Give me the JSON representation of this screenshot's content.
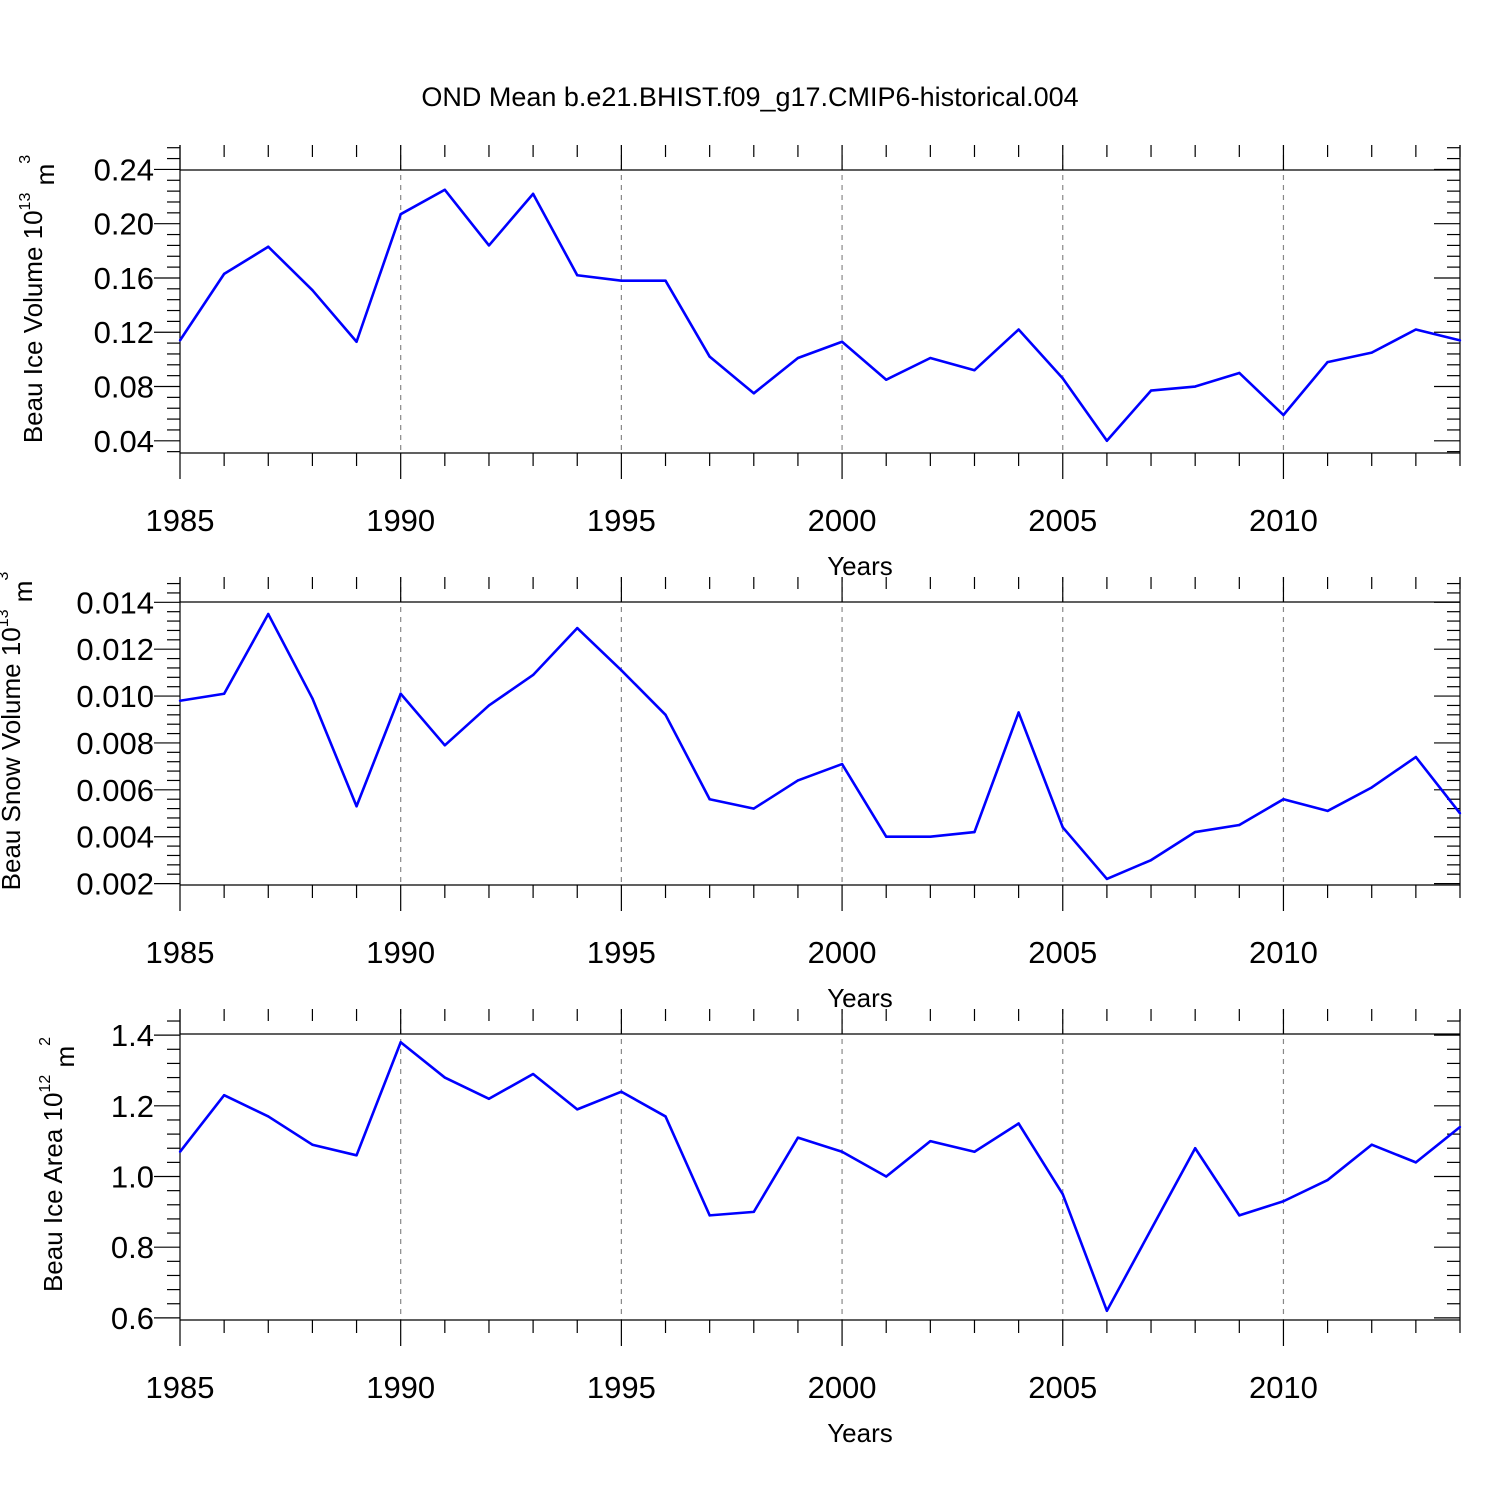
{
  "title": "OND Mean b.e21.BHIST.f09_g17.CMIP6-historical.004",
  "colors": {
    "line": "#0000ff",
    "grid": "#888888",
    "axis": "#000000"
  },
  "chart_data": [
    {
      "type": "line",
      "title": "OND Mean b.e21.BHIST.f09_g17.CMIP6-historical.004",
      "xlabel": "Years",
      "ylabel": {
        "base": "Beau Ice Volume 10",
        "exp": "13",
        "unit": " m",
        "unit_exp": "3"
      },
      "xlim": [
        1985,
        2014
      ],
      "ylim": [
        0.031,
        0.258
      ],
      "x_ticks": [
        "1985",
        "1990",
        "1995",
        "2000",
        "2005",
        "2010"
      ],
      "y_ticks": [
        "0.04",
        "0.08",
        "0.12",
        "0.16",
        "0.20",
        "0.24"
      ],
      "x": [
        1985,
        1986,
        1987,
        1988,
        1989,
        1990,
        1991,
        1992,
        1993,
        1994,
        1995,
        1996,
        1997,
        1998,
        1999,
        2000,
        2001,
        2002,
        2003,
        2004,
        2005,
        2006,
        2007,
        2008,
        2009,
        2010,
        2011,
        2012,
        2013,
        2014
      ],
      "values": [
        0.114,
        0.163,
        0.183,
        0.151,
        0.113,
        0.207,
        0.225,
        0.184,
        0.222,
        0.162,
        0.158,
        0.158,
        0.102,
        0.075,
        0.101,
        0.113,
        0.085,
        0.101,
        0.092,
        0.122,
        0.086,
        0.04,
        0.077,
        0.08,
        0.09,
        0.059,
        0.098,
        0.105,
        0.122,
        0.114
      ]
    },
    {
      "type": "line",
      "xlabel": "Years",
      "ylabel": {
        "base": "Beau Snow Volume 10",
        "exp": "13",
        "unit": " m",
        "unit_exp": "3"
      },
      "xlim": [
        1985,
        2014
      ],
      "ylim": [
        0.00194,
        0.01508
      ],
      "x_ticks": [
        "1985",
        "1990",
        "1995",
        "2000",
        "2005",
        "2010"
      ],
      "y_ticks": [
        "0.002",
        "0.004",
        "0.006",
        "0.008",
        "0.010",
        "0.012",
        "0.014"
      ],
      "x": [
        1985,
        1986,
        1987,
        1988,
        1989,
        1990,
        1991,
        1992,
        1993,
        1994,
        1995,
        1996,
        1997,
        1998,
        1999,
        2000,
        2001,
        2002,
        2003,
        2004,
        2005,
        2006,
        2007,
        2008,
        2009,
        2010,
        2011,
        2012,
        2013,
        2014
      ],
      "values": [
        0.0098,
        0.0101,
        0.0135,
        0.0099,
        0.0053,
        0.0101,
        0.0079,
        0.0096,
        0.0109,
        0.0129,
        0.0111,
        0.0092,
        0.0056,
        0.0052,
        0.0064,
        0.0071,
        0.004,
        0.004,
        0.0042,
        0.0093,
        0.0044,
        0.0022,
        0.003,
        0.0042,
        0.0045,
        0.0056,
        0.0051,
        0.0061,
        0.0074,
        0.005
      ]
    },
    {
      "type": "line",
      "xlabel": "Years",
      "ylabel": {
        "base": "Beau Ice Area 10",
        "exp": "12",
        "unit": " m",
        "unit_exp": "2"
      },
      "xlim": [
        1985,
        2014
      ],
      "ylim": [
        0.594,
        1.474
      ],
      "x_ticks": [
        "1985",
        "1990",
        "1995",
        "2000",
        "2005",
        "2010"
      ],
      "y_ticks": [
        "0.6",
        "0.8",
        "1.0",
        "1.2",
        "1.4"
      ],
      "x": [
        1985,
        1986,
        1987,
        1988,
        1989,
        1990,
        1991,
        1992,
        1993,
        1994,
        1995,
        1996,
        1997,
        1998,
        1999,
        2000,
        2001,
        2002,
        2003,
        2004,
        2005,
        2006,
        2007,
        2008,
        2009,
        2010,
        2011,
        2012,
        2013,
        2014
      ],
      "values": [
        1.07,
        1.23,
        1.17,
        1.09,
        1.06,
        1.38,
        1.28,
        1.22,
        1.29,
        1.19,
        1.24,
        1.17,
        0.89,
        0.9,
        1.11,
        1.07,
        1.0,
        1.1,
        1.07,
        1.15,
        0.95,
        0.62,
        0.85,
        1.08,
        0.89,
        0.93,
        0.99,
        1.09,
        1.04,
        1.14
      ]
    }
  ]
}
